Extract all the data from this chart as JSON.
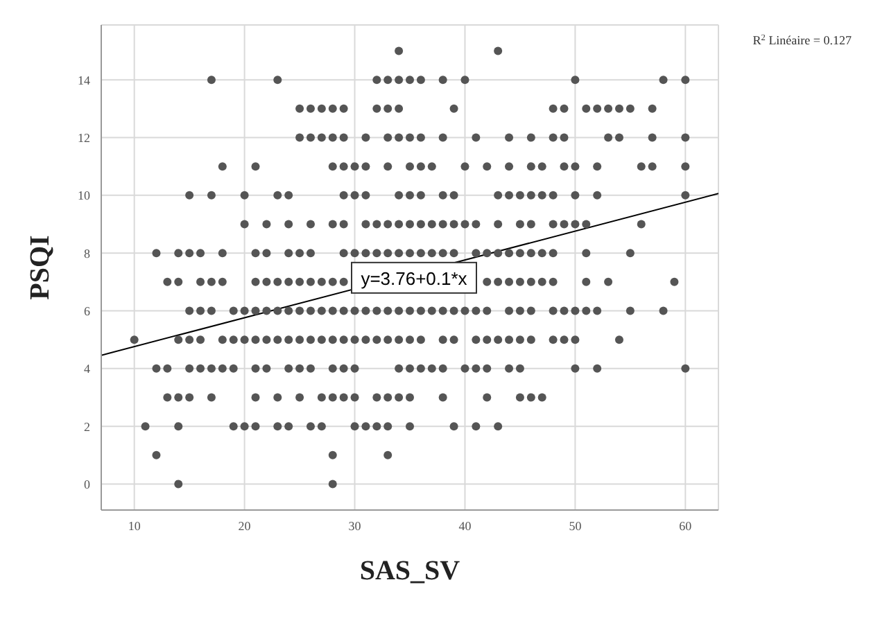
{
  "chart_data": {
    "type": "scatter",
    "xlabel": "SAS_SV",
    "ylabel": "PSQI",
    "xlim": [
      7,
      63
    ],
    "ylim": [
      -0.9,
      15.9
    ],
    "xticks": [
      10,
      20,
      30,
      40,
      50,
      60
    ],
    "yticks": [
      0,
      2,
      4,
      6,
      8,
      10,
      12,
      14
    ],
    "grid": true,
    "marker": "circle",
    "annotations": [
      "R$^{2}$ Linéaire = 0.127",
      {
        "text": "y=3.76+0.1*x",
        "x": 35,
        "y": 7
      }
    ],
    "series": [
      {
        "color": "#555555",
        "x": [
          34,
          43
        ],
        "values": [
          15,
          15
        ]
      },
      {
        "color": "#555555",
        "x": [
          17,
          23,
          32,
          33,
          34,
          35,
          36,
          38,
          40,
          50,
          58,
          60
        ],
        "values": [
          14,
          14,
          14,
          14,
          14,
          14,
          14,
          14,
          14,
          14,
          14,
          14
        ]
      },
      {
        "color": "#555555",
        "x": [
          25,
          26,
          27,
          28,
          29,
          32,
          33,
          34,
          39,
          48,
          49,
          51,
          52,
          53,
          54,
          55,
          57
        ],
        "values": [
          13,
          13,
          13,
          13,
          13,
          13,
          13,
          13,
          13,
          13,
          13,
          13,
          13,
          13,
          13,
          13,
          13
        ]
      },
      {
        "color": "#555555",
        "x": [
          25,
          26,
          27,
          28,
          29,
          31,
          33,
          34,
          35,
          36,
          38,
          41,
          44,
          46,
          48,
          49,
          53,
          54,
          57,
          60
        ],
        "values": [
          12,
          12,
          12,
          12,
          12,
          12,
          12,
          12,
          12,
          12,
          12,
          12,
          12,
          12,
          12,
          12,
          12,
          12,
          12,
          12
        ]
      },
      {
        "color": "#555555",
        "x": [
          18,
          21,
          28,
          29,
          30,
          31,
          33,
          35,
          36,
          37,
          40,
          42,
          44,
          46,
          47,
          49,
          50,
          52,
          56,
          57,
          60
        ],
        "values": [
          11,
          11,
          11,
          11,
          11,
          11,
          11,
          11,
          11,
          11,
          11,
          11,
          11,
          11,
          11,
          11,
          11,
          11,
          11,
          11,
          11
        ]
      },
      {
        "color": "#555555",
        "x": [
          15,
          17,
          20,
          23,
          24,
          29,
          30,
          31,
          34,
          35,
          36,
          38,
          39,
          43,
          44,
          45,
          46,
          47,
          48,
          50,
          52,
          60
        ],
        "values": [
          10,
          10,
          10,
          10,
          10,
          10,
          10,
          10,
          10,
          10,
          10,
          10,
          10,
          10,
          10,
          10,
          10,
          10,
          10,
          10,
          10,
          10
        ]
      },
      {
        "color": "#555555",
        "x": [
          20,
          22,
          24,
          26,
          28,
          29,
          31,
          32,
          33,
          34,
          35,
          36,
          37,
          38,
          39,
          40,
          41,
          43,
          45,
          46,
          48,
          49,
          50,
          51,
          56
        ],
        "values": [
          9,
          9,
          9,
          9,
          9,
          9,
          9,
          9,
          9,
          9,
          9,
          9,
          9,
          9,
          9,
          9,
          9,
          9,
          9,
          9,
          9,
          9,
          9,
          9,
          9
        ]
      },
      {
        "color": "#555555",
        "x": [
          12,
          14,
          15,
          16,
          18,
          21,
          22,
          24,
          25,
          26,
          29,
          30,
          31,
          32,
          33,
          34,
          35,
          36,
          37,
          38,
          39,
          41,
          42,
          43,
          44,
          45,
          46,
          47,
          48,
          51,
          55
        ],
        "values": [
          8,
          8,
          8,
          8,
          8,
          8,
          8,
          8,
          8,
          8,
          8,
          8,
          8,
          8,
          8,
          8,
          8,
          8,
          8,
          8,
          8,
          8,
          8,
          8,
          8,
          8,
          8,
          8,
          8,
          8,
          8
        ]
      },
      {
        "color": "#555555",
        "x": [
          13,
          14,
          16,
          17,
          18,
          21,
          22,
          23,
          24,
          25,
          26,
          27,
          28,
          29,
          42,
          43,
          44,
          45,
          46,
          47,
          48,
          51,
          53,
          59
        ],
        "values": [
          7,
          7,
          7,
          7,
          7,
          7,
          7,
          7,
          7,
          7,
          7,
          7,
          7,
          7,
          7,
          7,
          7,
          7,
          7,
          7,
          7,
          7,
          7,
          7
        ]
      },
      {
        "color": "#555555",
        "x": [
          15,
          16,
          17,
          19,
          20,
          21,
          22,
          23,
          24,
          25,
          26,
          27,
          28,
          29,
          30,
          31,
          32,
          33,
          34,
          35,
          36,
          37,
          38,
          39,
          40,
          41,
          42,
          44,
          45,
          46,
          48,
          49,
          50,
          51,
          52,
          55,
          58
        ],
        "values": [
          6,
          6,
          6,
          6,
          6,
          6,
          6,
          6,
          6,
          6,
          6,
          6,
          6,
          6,
          6,
          6,
          6,
          6,
          6,
          6,
          6,
          6,
          6,
          6,
          6,
          6,
          6,
          6,
          6,
          6,
          6,
          6,
          6,
          6,
          6,
          6,
          6
        ]
      },
      {
        "color": "#555555",
        "x": [
          10,
          14,
          15,
          16,
          18,
          19,
          20,
          21,
          22,
          23,
          24,
          25,
          26,
          27,
          28,
          29,
          30,
          31,
          32,
          33,
          34,
          35,
          36,
          38,
          39,
          41,
          42,
          43,
          44,
          45,
          46,
          48,
          49,
          50,
          54
        ],
        "values": [
          5,
          5,
          5,
          5,
          5,
          5,
          5,
          5,
          5,
          5,
          5,
          5,
          5,
          5,
          5,
          5,
          5,
          5,
          5,
          5,
          5,
          5,
          5,
          5,
          5,
          5,
          5,
          5,
          5,
          5,
          5,
          5,
          5,
          5,
          5
        ]
      },
      {
        "color": "#555555",
        "x": [
          12,
          13,
          15,
          16,
          17,
          18,
          19,
          21,
          22,
          24,
          25,
          26,
          28,
          29,
          30,
          34,
          35,
          36,
          37,
          38,
          40,
          41,
          42,
          44,
          45,
          50,
          52,
          60
        ],
        "values": [
          4,
          4,
          4,
          4,
          4,
          4,
          4,
          4,
          4,
          4,
          4,
          4,
          4,
          4,
          4,
          4,
          4,
          4,
          4,
          4,
          4,
          4,
          4,
          4,
          4,
          4,
          4,
          4
        ]
      },
      {
        "color": "#555555",
        "x": [
          13,
          14,
          15,
          17,
          21,
          23,
          25,
          27,
          28,
          29,
          30,
          32,
          33,
          34,
          35,
          38,
          42,
          45,
          46,
          47
        ],
        "values": [
          3,
          3,
          3,
          3,
          3,
          3,
          3,
          3,
          3,
          3,
          3,
          3,
          3,
          3,
          3,
          3,
          3,
          3,
          3,
          3
        ]
      },
      {
        "color": "#555555",
        "x": [
          11,
          14,
          19,
          20,
          21,
          23,
          24,
          26,
          27,
          30,
          31,
          32,
          33,
          35,
          39,
          41,
          43
        ],
        "values": [
          2,
          2,
          2,
          2,
          2,
          2,
          2,
          2,
          2,
          2,
          2,
          2,
          2,
          2,
          2,
          2,
          2
        ]
      },
      {
        "color": "#555555",
        "x": [
          12,
          28,
          33
        ],
        "values": [
          1,
          1,
          1
        ]
      },
      {
        "color": "#555555",
        "x": [
          14,
          28
        ],
        "values": [
          0,
          0
        ]
      },
      {
        "type": "line",
        "color": "#000000",
        "x": [
          7,
          63
        ],
        "values": [
          4.46,
          10.06
        ],
        "marker": "none"
      }
    ]
  }
}
